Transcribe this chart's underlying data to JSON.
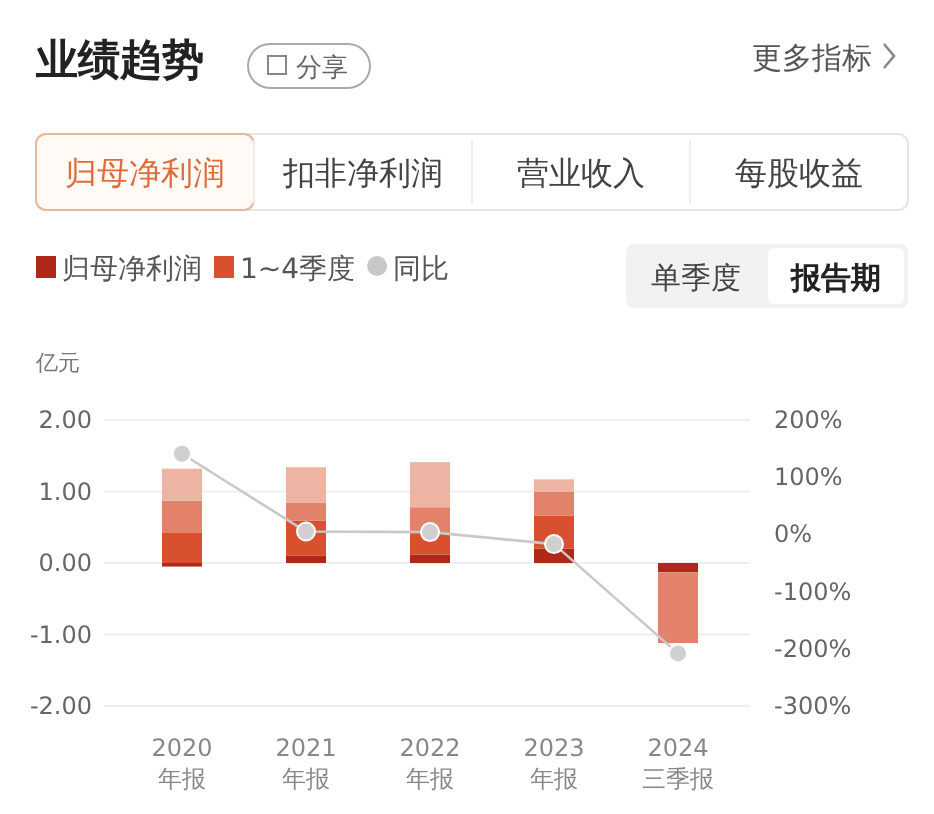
{
  "chart_data": {
    "type": "bar",
    "stacked": true,
    "title": "业绩趋势",
    "ylabel": "亿元",
    "annotations": [
      "分享",
      "更多指标",
      "归母净利润",
      "扣非净利润",
      "营业收入",
      "每股收益",
      "单季度",
      "报告期"
    ],
    "categories": [
      "2020\n年报",
      "2021\n年报",
      "2022\n年报",
      "2023\n年报",
      "2024\n三季报"
    ],
    "series": [
      {
        "name": "归母净利润",
        "color": "#b0281a",
        "values": [
          -0.05,
          0.1,
          0.12,
          0.2,
          -0.13
        ]
      },
      {
        "name": "1~4季度",
        "color": "#d9502e",
        "values": [
          0.42,
          0.49,
          0.3,
          0.46,
          0
        ]
      },
      {
        "color": "#e2826a",
        "values": [
          0.45,
          0.25,
          0.36,
          0.34,
          -0.99
        ]
      },
      {
        "color": "#edb4a4",
        "values": [
          0.45,
          0.5,
          0.63,
          0.17,
          null
        ]
      },
      {
        "name": "同比",
        "type": "line",
        "axis": "y2",
        "color": "#c8c8c8",
        "marker": "circle",
        "values": [
          141,
          5,
          4,
          -17,
          -208
        ]
      }
    ],
    "ylim": [
      -2,
      2
    ],
    "yticks": [
      {
        "value": -2,
        "label": "-2.00"
      },
      {
        "value": -1,
        "label": "-1.00"
      },
      {
        "value": 0,
        "label": "0.00"
      },
      {
        "value": 1,
        "label": "1.00"
      },
      {
        "value": 2,
        "label": "2.00"
      }
    ],
    "y2lim": [
      -300,
      200
    ],
    "y2ticks": [
      {
        "value": -300,
        "label": "-300%"
      },
      {
        "value": -200,
        "label": "-200%"
      },
      {
        "value": -100,
        "label": "-100%"
      },
      {
        "value": 0,
        "label": "0%"
      },
      {
        "value": 100,
        "label": "100%"
      },
      {
        "value": 200,
        "label": "200%"
      }
    ],
    "grid": "y",
    "legend": "top left"
  }
}
